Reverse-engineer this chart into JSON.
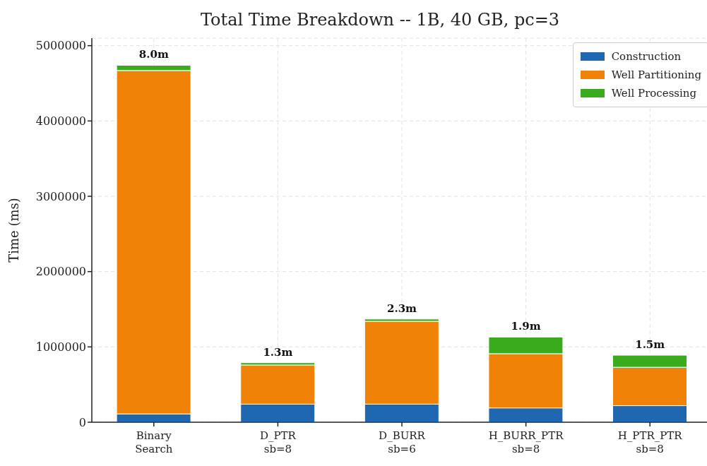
{
  "chart_data": {
    "type": "bar",
    "title": "Total Time Breakdown -- 1B, 40 GB, pc=3",
    "ylabel": "Time (ms)",
    "categories": [
      "Binary\nSearch",
      "D_PTR\nsb=8",
      "D_BURR\nsb=6",
      "H_BURR_PTR\nsb=8",
      "H_PTR_PTR\nsb=8"
    ],
    "stacked": true,
    "series": [
      {
        "name": "Construction",
        "color": "#1f67b0",
        "values": [
          110000,
          240000,
          240000,
          190000,
          220000
        ]
      },
      {
        "name": "Well Partitioning",
        "color": "#f08208",
        "values": [
          4560000,
          520000,
          1100000,
          720000,
          510000
        ]
      },
      {
        "name": "Well Processing",
        "color": "#3aab1c",
        "values": [
          70000,
          30000,
          30000,
          220000,
          160000
        ]
      }
    ],
    "annotations": [
      {
        "text": "8.0m",
        "x": "Binary\nSearch",
        "y": 4740000
      },
      {
        "text": "1.3m",
        "x": "D_PTR\nsb=8",
        "y": 790000
      },
      {
        "text": "2.3m",
        "x": "D_BURR\nsb=6",
        "y": 1370000
      },
      {
        "text": "1.9m",
        "x": "H_BURR_PTR\nsb=8",
        "y": 1130000
      },
      {
        "text": "1.5m",
        "x": "H_PTR_PTR\nsb=8",
        "y": 890000
      }
    ],
    "ylim": [
      0,
      5100000
    ],
    "yticks": [
      0,
      1000000,
      2000000,
      3000000,
      4000000,
      5000000
    ],
    "grid": true,
    "legend": "top right"
  }
}
